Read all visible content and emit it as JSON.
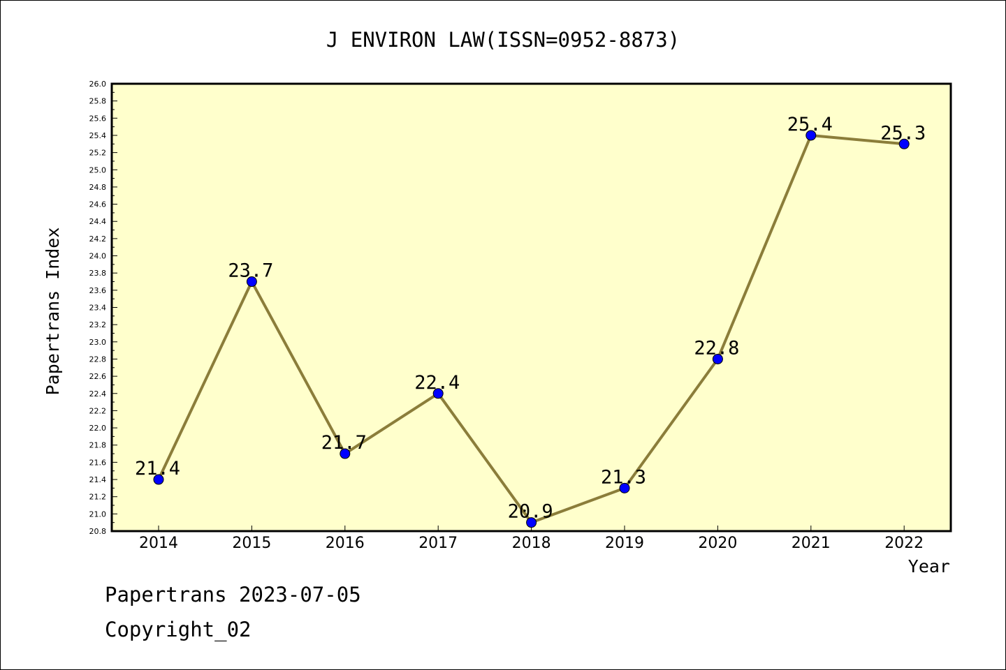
{
  "chart_data": {
    "type": "line",
    "title": "J ENVIRON LAW(ISSN=0952-8873)",
    "xlabel": "Year",
    "ylabel": "Papertrans Index",
    "categories": [
      "2014",
      "2015",
      "2016",
      "2017",
      "2018",
      "2019",
      "2020",
      "2021",
      "2022"
    ],
    "series": [
      {
        "values": [
          21.4,
          23.7,
          21.7,
          22.4,
          20.9,
          21.3,
          22.8,
          25.4,
          25.3
        ]
      }
    ],
    "data_labels": [
      "21.4",
      "23.7",
      "21.7",
      "22.4",
      "20.9",
      "21.3",
      "22.8",
      "25.4",
      "25.3"
    ],
    "ylim": [
      20.8,
      26.0
    ],
    "y_ticks": [
      "20.8",
      "21.0",
      "21.2",
      "21.4",
      "21.6",
      "21.8",
      "22.0",
      "22.2",
      "22.4",
      "22.6",
      "22.8",
      "23.0",
      "23.2",
      "23.4",
      "23.6",
      "23.8",
      "24.0",
      "24.2",
      "24.4",
      "24.6",
      "24.8",
      "25.0",
      "25.2",
      "25.4",
      "25.6",
      "25.8",
      "26.0"
    ],
    "grid": false,
    "colors": {
      "plot_background": "#ffffcc",
      "line": "#8b7d3a",
      "marker": "#0000ff"
    }
  },
  "footer": {
    "date_line": "Papertrans 2023-07-05",
    "copyright_line": "Copyright_02"
  }
}
